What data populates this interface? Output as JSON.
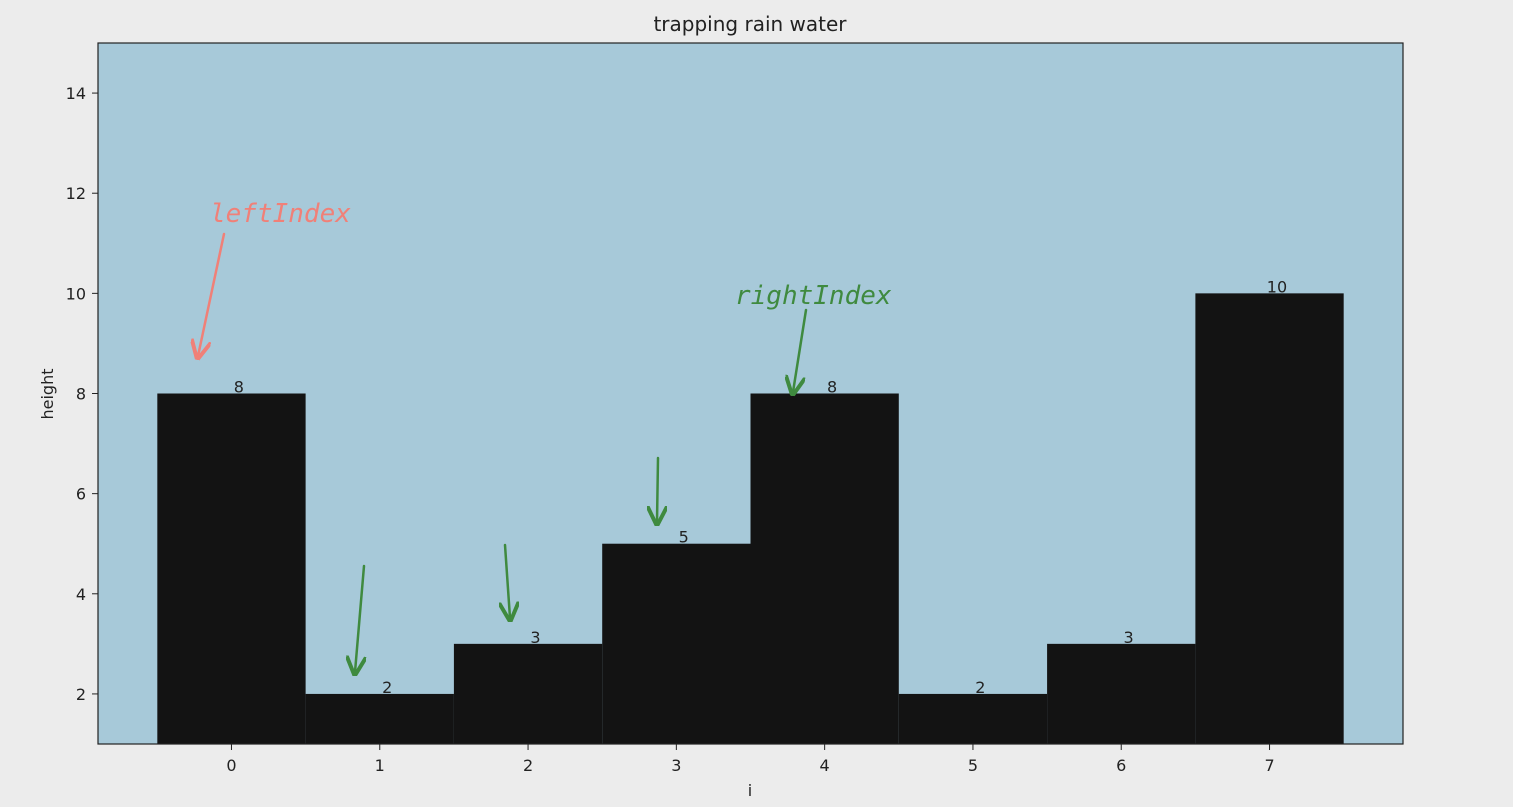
{
  "chart_data": {
    "type": "bar",
    "title": "trapping rain water",
    "xlabel": "i",
    "ylabel": "height",
    "categories": [
      "0",
      "1",
      "2",
      "3",
      "4",
      "5",
      "6",
      "7"
    ],
    "values": [
      8,
      2,
      3,
      5,
      8,
      2,
      3,
      10
    ],
    "data_labels": [
      "8",
      "2",
      "3",
      "5",
      "8",
      "2",
      "3",
      "10"
    ],
    "ylim": [
      1,
      15
    ],
    "yticks": [
      2,
      4,
      6,
      8,
      10,
      12,
      14
    ],
    "grid": false,
    "colors": {
      "figure_bg": "#ececec",
      "plot_bg": "#a7c9d9",
      "bar": "#131313",
      "left_annotation": "#f08078",
      "right_annotation": "#3f8a3f"
    },
    "annotations": [
      {
        "text": "leftIndex",
        "color": "left_annotation",
        "points_to_index": 0
      },
      {
        "text": "rightIndex",
        "color": "right_annotation",
        "points_to_index": 4
      }
    ],
    "markers": [
      {
        "color": "right_annotation",
        "points_to_index": 1
      },
      {
        "color": "right_annotation",
        "points_to_index": 2
      },
      {
        "color": "right_annotation",
        "points_to_index": 3
      }
    ]
  }
}
